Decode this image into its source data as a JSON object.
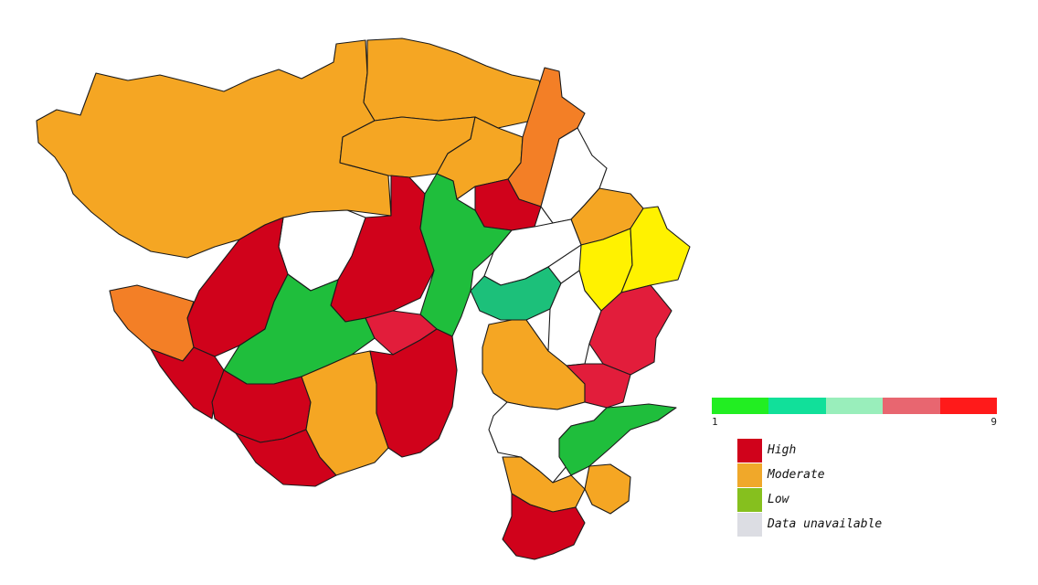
{
  "colors": {
    "high": "#d0021b",
    "high_alt": "#e21d3b",
    "moderate": "#f5a623",
    "moderate_alt": "#f37f26",
    "low": "#1fbe3c",
    "low_alt": "#1cc07a",
    "lowest": "#fff200",
    "unavailable": "#ffffff"
  },
  "scale": {
    "min_label": "1",
    "max_label": "9",
    "segments": [
      "#22ee22",
      "#11e09a",
      "#99eebb",
      "#e86670",
      "#ff1a1a"
    ]
  },
  "legend": {
    "items": [
      {
        "label": "High",
        "color": "#d0021b"
      },
      {
        "label": "Moderate",
        "color": "#f0a82a"
      },
      {
        "label": "Low",
        "color": "#86c01e"
      },
      {
        "label": "Data unavailable",
        "color": "#dcdde3"
      }
    ]
  }
}
